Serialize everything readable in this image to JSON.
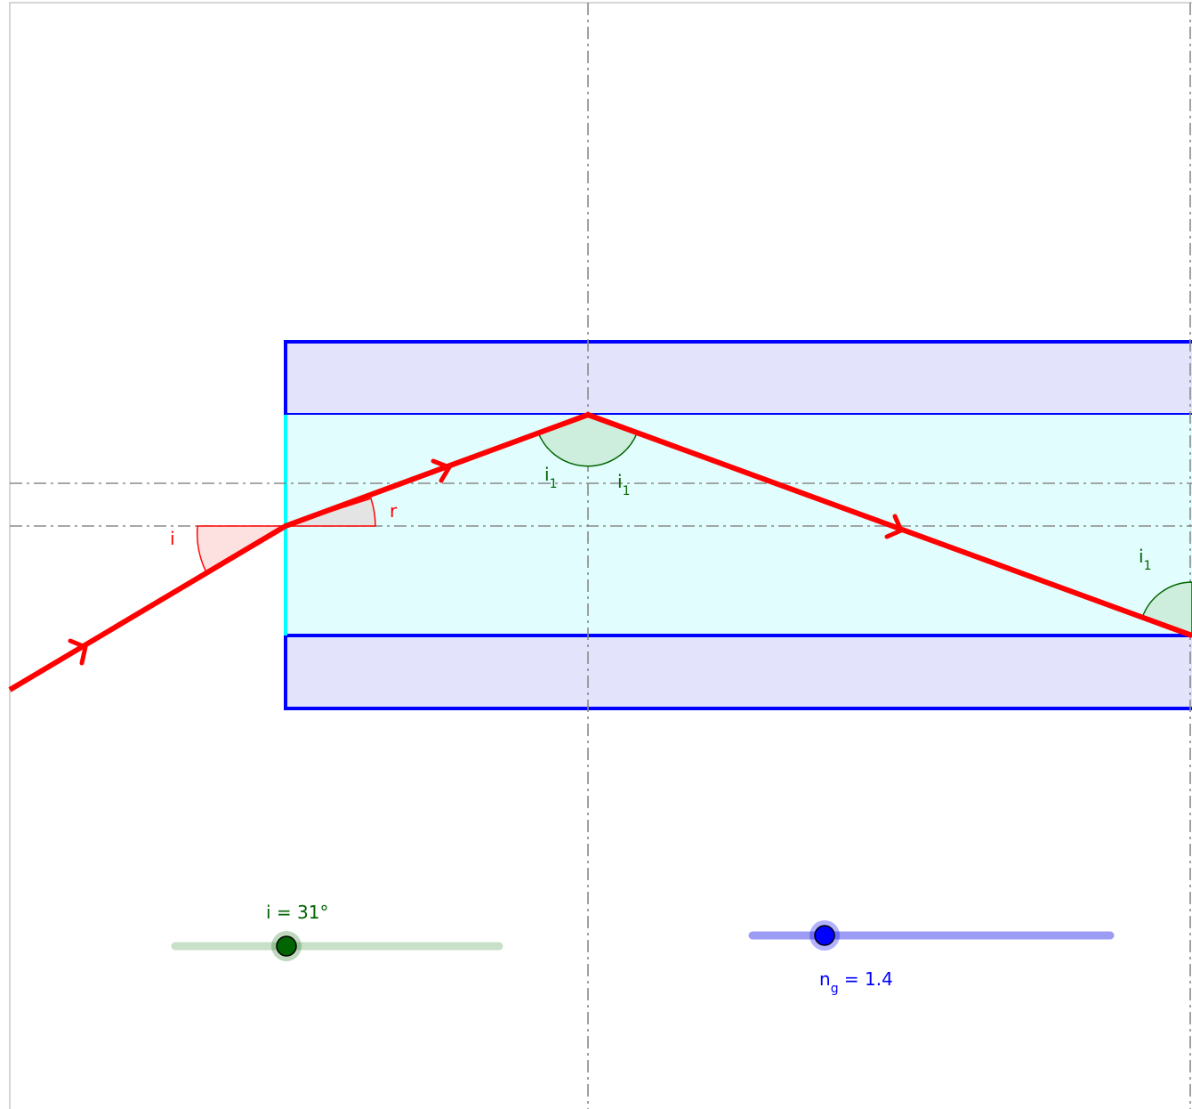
{
  "colors": {
    "ray": "#ff0000",
    "cladding_stroke": "#0000ff",
    "cladding_fill": "#e3e3fb",
    "core_fill": "#e1fdfd",
    "core_edge": "#00ffff",
    "dash": "#8a8a8a",
    "angle_green_stroke": "#006400",
    "angle_green_fill": "#cdeedd",
    "angle_red_fill": "#fde0e0",
    "angle_grey_fill": "#e4e4e4",
    "slider_i_track": "#c8e0c8",
    "slider_i_thumb": "#006400",
    "slider_n_track": "#9c9cf5",
    "slider_n_thumb": "#0000ff",
    "text_green": "#006400",
    "text_red": "#ff0000",
    "text_blue": "#0000ff"
  },
  "labels": {
    "angle_i": "i",
    "angle_r": "r",
    "angle_i1_base": "i",
    "angle_i1_sub": "1"
  },
  "slider_i": {
    "label": "i = 31°",
    "value": 31
  },
  "slider_n": {
    "label_base": "n",
    "label_sub": "g",
    "label_value": " = 1.4",
    "value": 1.4
  }
}
